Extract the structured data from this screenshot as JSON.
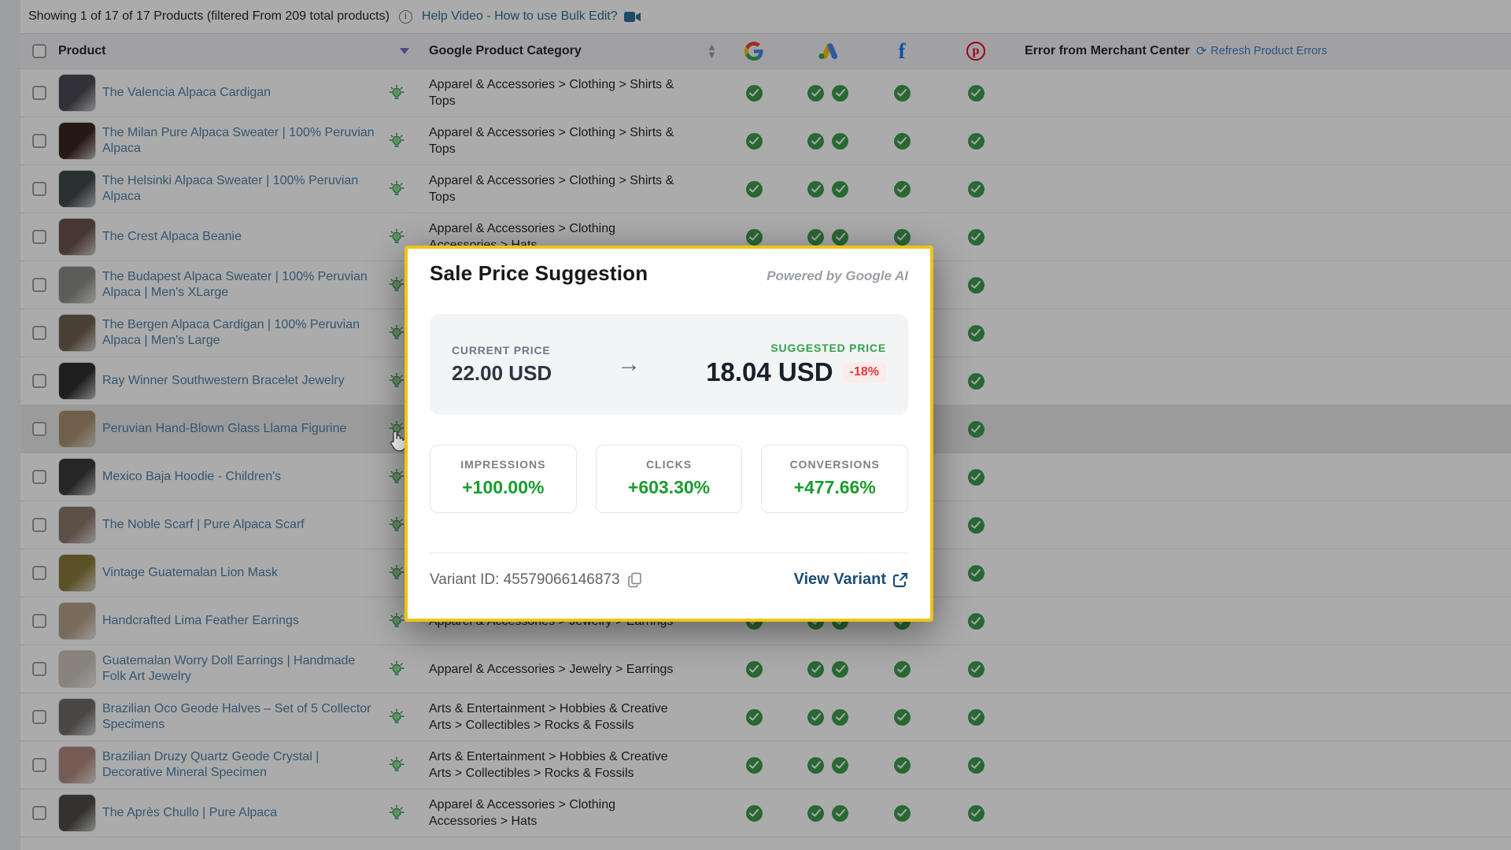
{
  "topbar": {
    "showing_text": "Showing 1 of 17 of 17 Products (filtered From 209 total products)",
    "info_icon": "i",
    "help_link": "Help Video - How to use Bulk Edit?"
  },
  "table_header": {
    "product": "Product",
    "category": "Google Product Category",
    "error": "Error from Merchant Center",
    "refresh_link": "Refresh Product Errors",
    "channel_icons": [
      "google-icon",
      "google-ads-icon",
      "facebook-icon",
      "pinterest-icon"
    ]
  },
  "colors": {
    "check_green": "#3f9b4c",
    "link_blue": "#4d81a6",
    "popup_border_yellow": "#eec414",
    "suggestion_green": "#1a9c2e",
    "discount_red": "#e23b3b",
    "facebook_blue": "#1877f2",
    "pinterest_red": "#e60023"
  },
  "products": [
    {
      "name": "The Valencia Alpaca Cardigan",
      "category": "Apparel & Accessories > Clothing > Shirts & Tops",
      "thumb": "#4a4a52",
      "hover": false
    },
    {
      "name": "The Milan Pure Alpaca Sweater | 100% Peruvian Alpaca",
      "category": "Apparel & Accessories > Clothing > Shirts & Tops",
      "thumb": "#3a2420",
      "hover": false
    },
    {
      "name": "The Helsinki Alpaca Sweater | 100% Peruvian Alpaca",
      "category": "Apparel & Accessories > Clothing > Shirts & Tops",
      "thumb": "#3f464a",
      "hover": false
    },
    {
      "name": "The Crest Alpaca Beanie",
      "category": "Apparel & Accessories > Clothing Accessories > Hats",
      "thumb": "#6b5348",
      "hover": false
    },
    {
      "name": "The Budapest Alpaca Sweater | 100% Peruvian Alpaca | Men's XLarge",
      "category": "",
      "thumb": "#8a8a85",
      "hover": false
    },
    {
      "name": "The Bergen Alpaca Cardigan | 100% Peruvian Alpaca | Men's Large",
      "category": "",
      "thumb": "#6e5f4e",
      "hover": false
    },
    {
      "name": "Ray Winner Southwestern Bracelet Jewelry",
      "category": "",
      "thumb": "#2f2f2f",
      "hover": false
    },
    {
      "name": "Peruvian Hand-Blown Glass Llama Figurine",
      "category": "",
      "thumb": "#a8906e",
      "hover": true
    },
    {
      "name": "Mexico Baja Hoodie - Children's",
      "category": "",
      "thumb": "#3a3a3a",
      "hover": false
    },
    {
      "name": "The Noble Scarf | Pure Alpaca Scarf",
      "category": "",
      "thumb": "#8a7668",
      "hover": false
    },
    {
      "name": "Vintage Guatemalan Lion Mask",
      "category": "",
      "thumb": "#8a7a3a",
      "hover": false
    },
    {
      "name": "Handcrafted Lima Feather Earrings",
      "category": "Apparel & Accessories > Jewelry > Earrings",
      "thumb": "#b5a08a",
      "hover": false
    },
    {
      "name": "Guatemalan Worry Doll Earrings | Handmade Folk Art Jewelry",
      "category": "Apparel & Accessories > Jewelry > Earrings",
      "thumb": "#c9c2b8",
      "hover": false
    },
    {
      "name": "Brazilian Oco Geode Halves – Set of 5 Collector Specimens",
      "category": "Arts & Entertainment > Hobbies & Creative Arts > Collectibles > Rocks & Fossils",
      "thumb": "#6e6a66",
      "hover": false
    },
    {
      "name": "Brazilian Druzy Quartz Geode Crystal | Decorative Mineral Specimen",
      "category": "Arts & Entertainment > Hobbies & Creative Arts > Collectibles > Rocks & Fossils",
      "thumb": "#b0887e",
      "hover": false
    },
    {
      "name": "The Après Chullo | Pure Alpaca",
      "category": "Apparel & Accessories > Clothing Accessories > Hats",
      "thumb": "#4e4a46",
      "hover": false
    }
  ],
  "popup": {
    "title": "Sale Price Suggestion",
    "powered_by": "Powered by Google AI",
    "current_label": "CURRENT PRICE",
    "current_value": "22.00 USD",
    "suggested_label": "SUGGESTED PRICE",
    "suggested_value": "18.04 USD",
    "discount": "-18%",
    "metrics": [
      {
        "label": "IMPRESSIONS",
        "value": "+100.00%"
      },
      {
        "label": "CLICKS",
        "value": "+603.30%"
      },
      {
        "label": "CONVERSIONS",
        "value": "+477.66%"
      }
    ],
    "variant_id_label": "Variant ID: 45579066146873",
    "view_variant_label": "View Variant"
  }
}
